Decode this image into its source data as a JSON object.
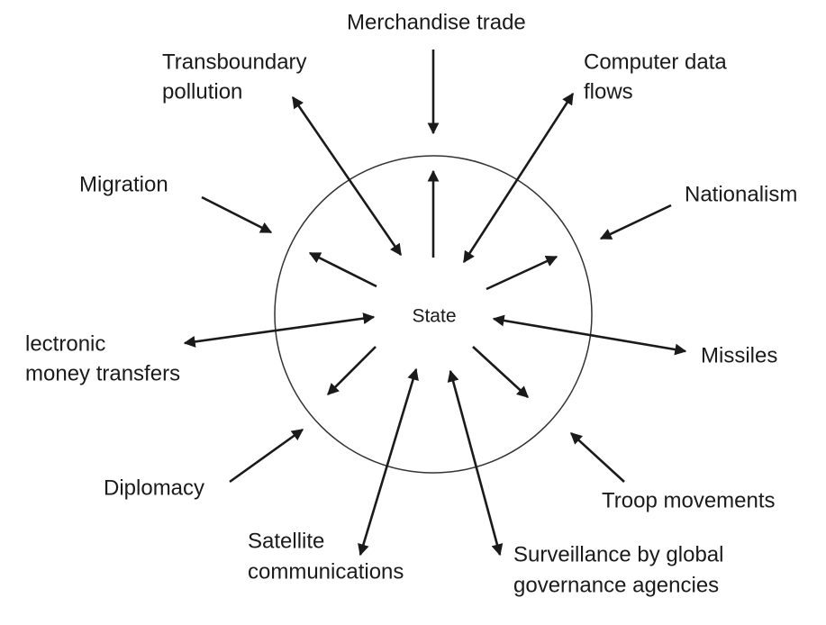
{
  "center": {
    "label": "State"
  },
  "nodes": [
    {
      "label": [
        "Merchandise trade"
      ]
    },
    {
      "label": [
        "Transboundary",
        "pollution"
      ]
    },
    {
      "label": [
        "Computer data",
        "flows"
      ]
    },
    {
      "label": [
        "Migration"
      ]
    },
    {
      "label": [
        "Nationalism"
      ]
    },
    {
      "label": [
        "lectronic",
        "money transfers"
      ]
    },
    {
      "label": [
        "Missiles"
      ]
    },
    {
      "label": [
        "Diplomacy"
      ]
    },
    {
      "label": [
        "Troop movements"
      ]
    },
    {
      "label": [
        "Satellite",
        "communications"
      ]
    },
    {
      "label": [
        "Surveillance by global",
        "governance agencies"
      ]
    }
  ]
}
